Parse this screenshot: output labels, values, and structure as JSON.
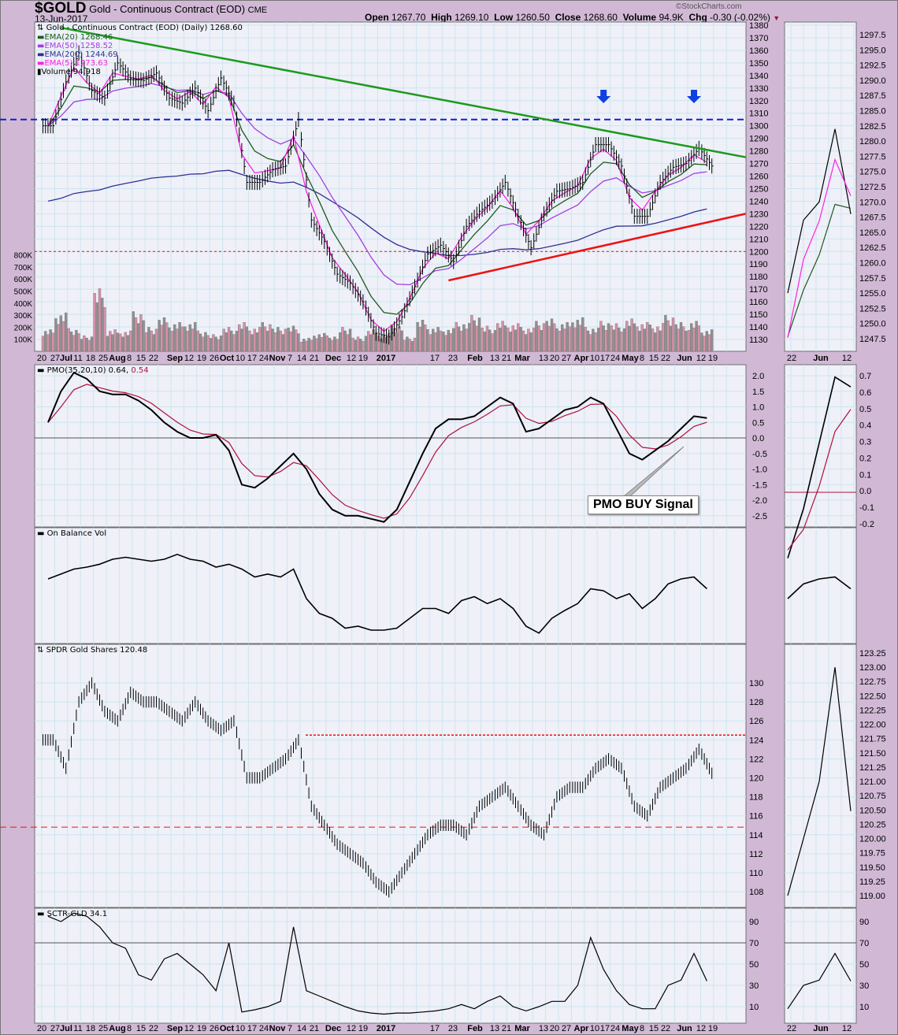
{
  "header": {
    "symbol": "$GOLD",
    "name": "Gold - Continuous Contract (EOD)",
    "exchange": "CME",
    "date": "13-Jun-2017",
    "watermark": "©StockCharts.com",
    "open_label": "Open",
    "open": "1267.70",
    "high_label": "High",
    "high": "1269.10",
    "low_label": "Low",
    "low": "1260.50",
    "close_label": "Close",
    "close": "1268.60",
    "volume_label": "Volume",
    "volume": "94.9K",
    "chg_label": "Chg",
    "chg": "-0.30 (-0.02%)"
  },
  "legend": {
    "price": "Gold - Continuous Contract (EOD) (Daily) 1268.60",
    "ema20": "EMA(20) 1268.46",
    "ema50": "EMA(50) 1258.52",
    "ema200": "EMA(200) 1244.69",
    "ema5": "EMA(5) 1273.63",
    "volume": "Volume 94,918",
    "pmo_a": "PMO(35,20,10) 0.64,",
    "pmo_b": "0.54",
    "obv": "On Balance Vol",
    "spdr": "SPDR Gold Shares 120.48",
    "sctr": "SCTR-GLD 34.1"
  },
  "annotation": "PMO BUY Signal",
  "colors": {
    "ema20": "#1e5a1e",
    "ema50": "#a040e0",
    "ema200": "#303090",
    "ema5": "#ff20e0",
    "pmo_signal": "#b0103c",
    "trend_down": "#1c9a1c",
    "trend_up": "#ee1111",
    "resistance": "#1020d0",
    "support": "#ee1111",
    "arrow": "#1040e0",
    "vol_up": "#909090",
    "vol_down": "#d890a8"
  },
  "chart_data": [
    {
      "type": "line",
      "title": "Gold - Continuous Contract (EOD) (Daily)",
      "x_labels": [
        "20",
        "27",
        "Jul",
        "11",
        "18",
        "25",
        "Aug",
        "8",
        "15",
        "22",
        "Sep",
        "12",
        "19",
        "26",
        "Oct",
        "10",
        "17",
        "24",
        "Nov",
        "7",
        "14",
        "21",
        "Dec",
        "12",
        "19",
        "2017",
        "17",
        "23",
        "Feb",
        "13",
        "21",
        "Mar",
        "13",
        "20",
        "27",
        "Apr",
        "10",
        "17",
        "24",
        "May",
        "8",
        "15",
        "22",
        "Jun",
        "12",
        "19"
      ],
      "y_ticks": [
        1380,
        1370,
        1360,
        1350,
        1340,
        1330,
        1320,
        1310,
        1300,
        1290,
        1280,
        1270,
        1260,
        1250,
        1240,
        1230,
        1220,
        1210,
        1200,
        1190,
        1180,
        1170,
        1160,
        1150,
        1140,
        1130
      ],
      "ylim": [
        1130,
        1380
      ],
      "close_weekly": [
        1300,
        1335,
        1358,
        1328,
        1322,
        1350,
        1338,
        1336,
        1342,
        1322,
        1318,
        1330,
        1312,
        1338,
        1318,
        1255,
        1255,
        1265,
        1268,
        1305,
        1225,
        1208,
        1182,
        1175,
        1160,
        1135,
        1132,
        1148,
        1172,
        1198,
        1205,
        1192,
        1220,
        1232,
        1240,
        1255,
        1228,
        1203,
        1230,
        1248,
        1250,
        1255,
        1285,
        1285,
        1268,
        1228,
        1228,
        1255,
        1267,
        1270,
        1282,
        1268
      ],
      "volume_ticks": [
        "800K",
        "700K",
        "600K",
        "500K",
        "400K",
        "300K",
        "200K",
        "100K"
      ],
      "volume_weekly_k": [
        180,
        320,
        190,
        130,
        520,
        180,
        170,
        330,
        200,
        280,
        240,
        240,
        170,
        140,
        200,
        240,
        200,
        240,
        200,
        210,
        110,
        150,
        130,
        200,
        120,
        180,
        150,
        220,
        120,
        260,
        200,
        190,
        240,
        300,
        210,
        250,
        230,
        200,
        250,
        270,
        240,
        280,
        200,
        250,
        230,
        270,
        240,
        220,
        300,
        240,
        250,
        180
      ],
      "resistance_level": 1305,
      "support_level": 1200,
      "trendline_down": {
        "from": [
          1,
          1378
        ],
        "to": [
          54,
          1275
        ]
      },
      "trendline_up": {
        "from": [
          31,
          1177
        ],
        "to": [
          54,
          1230
        ]
      },
      "sell_arrows_week": [
        43,
        50
      ]
    },
    {
      "type": "line",
      "title": "PMO(35,20,10)",
      "y_ticks": [
        "2.0",
        "1.5",
        "1.0",
        "0.5",
        "0.0",
        "-0.5",
        "-1.0",
        "-1.5",
        "-2.0",
        "-2.5"
      ],
      "pmo_weekly": [
        0.5,
        1.5,
        2.1,
        1.9,
        1.5,
        1.4,
        1.4,
        1.2,
        0.9,
        0.5,
        0.2,
        0.0,
        0.0,
        0.1,
        -0.4,
        -1.5,
        -1.6,
        -1.3,
        -0.9,
        -0.5,
        -1.0,
        -1.8,
        -2.3,
        -2.5,
        -2.5,
        -2.6,
        -2.7,
        -2.3,
        -1.4,
        -0.5,
        0.3,
        0.6,
        0.6,
        0.7,
        1.0,
        1.3,
        1.1,
        0.2,
        0.3,
        0.6,
        0.9,
        1.0,
        1.3,
        1.1,
        0.3,
        -0.5,
        -0.7,
        -0.4,
        -0.1,
        0.3,
        0.7,
        0.64
      ],
      "signal_last": 0.54
    },
    {
      "type": "line",
      "title": "On Balance Vol",
      "obv_relative": [
        60,
        65,
        70,
        72,
        75,
        80,
        82,
        80,
        78,
        80,
        85,
        80,
        78,
        72,
        75,
        70,
        62,
        65,
        62,
        70,
        40,
        25,
        20,
        10,
        12,
        8,
        8,
        10,
        20,
        30,
        30,
        25,
        38,
        42,
        35,
        40,
        30,
        12,
        5,
        20,
        28,
        35,
        50,
        48,
        40,
        45,
        30,
        40,
        55,
        60,
        62,
        50
      ]
    },
    {
      "type": "line",
      "title": "SPDR Gold Shares",
      "y_ticks": [
        130,
        128,
        126,
        124,
        122,
        120,
        118,
        116,
        114,
        112,
        110,
        108
      ],
      "close_weekly": [
        124,
        121,
        128,
        130,
        127,
        126,
        129,
        128,
        128,
        127,
        126,
        128,
        126,
        125,
        126,
        120,
        120,
        121,
        122,
        124,
        117,
        115,
        113,
        112,
        111,
        109,
        108,
        110,
        112,
        114,
        115,
        115,
        114,
        117,
        118,
        119,
        117,
        115,
        114,
        118,
        119,
        119,
        121,
        122,
        121,
        117,
        116,
        119,
        120,
        121,
        123,
        120.48
      ],
      "resistance_level": 124.5,
      "support_level": 114.8
    },
    {
      "type": "line",
      "title": "SCTR-GLD",
      "y_ticks": [
        90,
        70,
        50,
        30,
        10
      ],
      "sctr_weekly": [
        95,
        90,
        98,
        95,
        85,
        70,
        65,
        40,
        35,
        55,
        60,
        50,
        40,
        25,
        70,
        5,
        7,
        10,
        15,
        85,
        25,
        20,
        15,
        10,
        6,
        4,
        3,
        4,
        4,
        5,
        6,
        8,
        12,
        8,
        15,
        20,
        10,
        6,
        10,
        15,
        15,
        30,
        75,
        45,
        25,
        12,
        8,
        8,
        30,
        35,
        60,
        34.1
      ],
      "reference_level": 70
    }
  ],
  "mini": {
    "x_labels": [
      "22",
      "Jun",
      "12"
    ],
    "price_ticks": [
      "1297.5",
      "1295.0",
      "1292.5",
      "1290.0",
      "1287.5",
      "1285.0",
      "1282.5",
      "1280.0",
      "1277.5",
      "1275.0",
      "1272.5",
      "1270.0",
      "1267.5",
      "1265.0",
      "1262.5",
      "1260.0",
      "1257.5",
      "1255.0",
      "1252.5",
      "1250.0",
      "1247.5"
    ],
    "pmo_ticks": [
      "0.7",
      "0.6",
      "0.5",
      "0.4",
      "0.3",
      "0.2",
      "0.1",
      "0.0",
      "-0.1",
      "-0.2"
    ],
    "spdr_ticks": [
      "123.25",
      "123.00",
      "122.75",
      "122.50",
      "122.25",
      "122.00",
      "121.75",
      "121.50",
      "121.25",
      "121.00",
      "120.75",
      "120.50",
      "120.25",
      "120.00",
      "119.75",
      "119.50",
      "119.25",
      "119.00"
    ],
    "sctr_ticks": [
      "90",
      "70",
      "50",
      "30",
      "10"
    ]
  }
}
